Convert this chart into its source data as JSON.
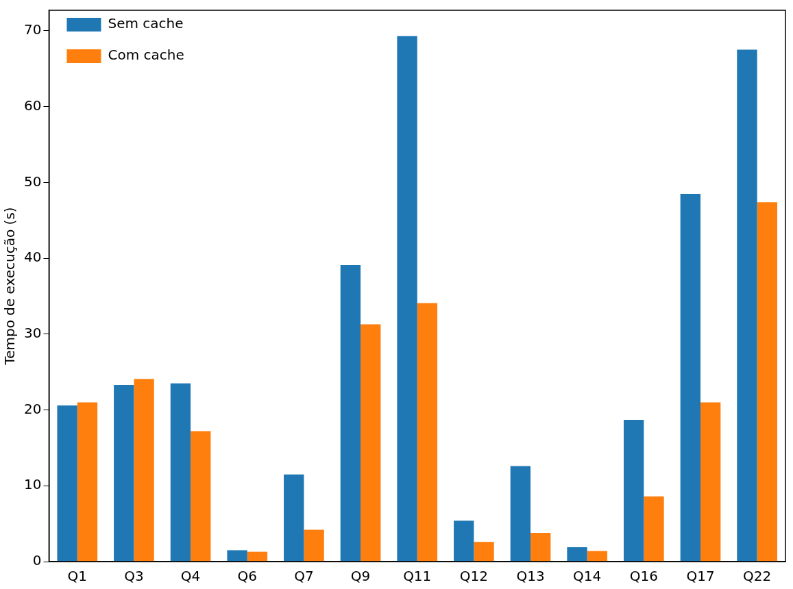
{
  "chart_data": {
    "type": "bar",
    "ylabel": "Tempo de execução (s)",
    "categories": [
      "Q1",
      "Q3",
      "Q4",
      "Q6",
      "Q7",
      "Q9",
      "Q11",
      "Q12",
      "Q13",
      "Q14",
      "Q16",
      "Q17",
      "Q22"
    ],
    "series": [
      {
        "name": "Sem cache",
        "color": "#1f77b4",
        "values": [
          20.6,
          23.3,
          23.5,
          1.5,
          11.5,
          39.1,
          69.3,
          5.4,
          12.6,
          1.9,
          18.7,
          48.5,
          67.5
        ]
      },
      {
        "name": "Com cache",
        "color": "#ff7f0e",
        "values": [
          21.0,
          24.1,
          17.2,
          1.3,
          4.2,
          31.3,
          34.1,
          2.6,
          3.8,
          1.4,
          8.6,
          21.0,
          47.4
        ]
      }
    ],
    "ylim": [
      0,
      72.7
    ],
    "yticks": [
      0,
      10,
      20,
      30,
      40,
      50,
      60,
      70
    ],
    "grid": false,
    "legend": "top left"
  }
}
